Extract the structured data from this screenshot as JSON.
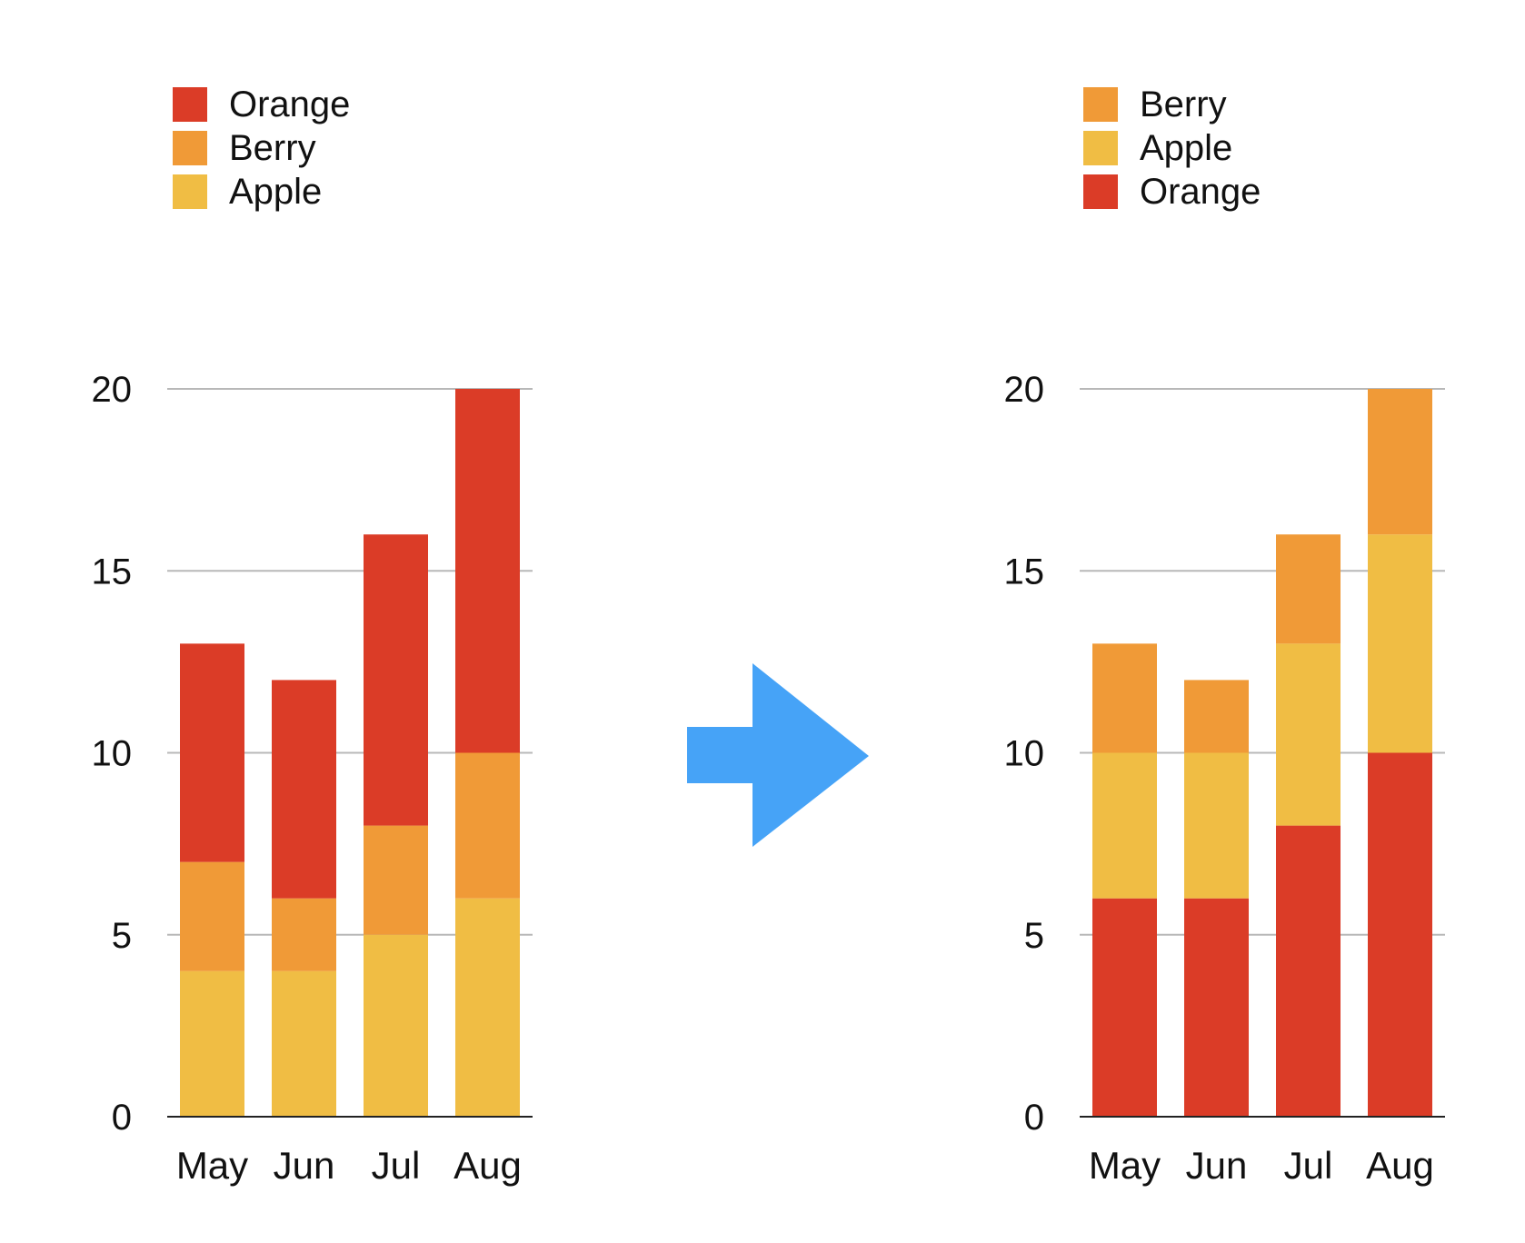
{
  "chart_data": [
    {
      "type": "bar",
      "stacked": true,
      "categories": [
        "May",
        "Jun",
        "Jul",
        "Aug"
      ],
      "series": [
        {
          "name": "Apple",
          "values": [
            4,
            4,
            5,
            6
          ],
          "color": "#f0bd44"
        },
        {
          "name": "Berry",
          "values": [
            3,
            2,
            3,
            4
          ],
          "color": "#f09a37"
        },
        {
          "name": "Orange",
          "values": [
            6,
            6,
            8,
            10
          ],
          "color": "#db3c27"
        }
      ],
      "stack_order_bottom_to_top": [
        "Apple",
        "Berry",
        "Orange"
      ],
      "legend_order": [
        "Orange",
        "Berry",
        "Apple"
      ],
      "legend_position": "top-left",
      "ylim": [
        0,
        20
      ],
      "yticks": [
        0,
        5,
        10,
        15,
        20
      ],
      "grid": true
    },
    {
      "type": "bar",
      "stacked": true,
      "categories": [
        "May",
        "Jun",
        "Jul",
        "Aug"
      ],
      "series": [
        {
          "name": "Orange",
          "values": [
            6,
            6,
            8,
            10
          ],
          "color": "#db3c27"
        },
        {
          "name": "Apple",
          "values": [
            4,
            4,
            5,
            6
          ],
          "color": "#f0bd44"
        },
        {
          "name": "Berry",
          "values": [
            3,
            2,
            3,
            4
          ],
          "color": "#f09a37"
        }
      ],
      "stack_order_bottom_to_top": [
        "Orange",
        "Apple",
        "Berry"
      ],
      "legend_order": [
        "Berry",
        "Apple",
        "Orange"
      ],
      "legend_position": "top-left",
      "ylim": [
        0,
        20
      ],
      "yticks": [
        0,
        5,
        10,
        15,
        20
      ],
      "grid": true
    }
  ],
  "arrow": {
    "icon": "right-arrow-icon",
    "color": "#46a3f7"
  }
}
